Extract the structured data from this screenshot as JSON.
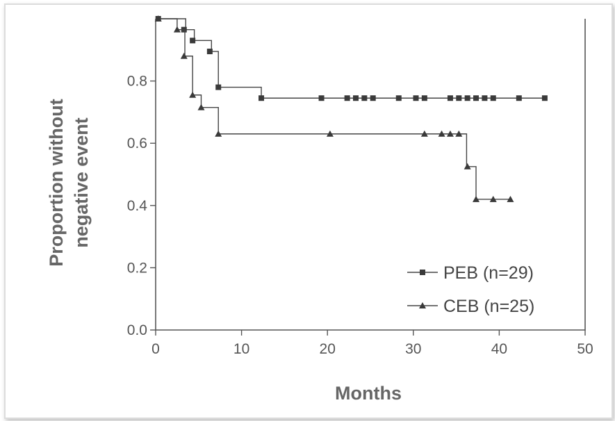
{
  "chart_data": {
    "type": "line",
    "xlabel": "Months",
    "ylabel_lines": [
      "Proportion without",
      "negative event"
    ],
    "xlim": [
      0,
      50
    ],
    "ylim": [
      0,
      1.0
    ],
    "x_ticks": [
      0,
      10,
      20,
      30,
      40,
      50
    ],
    "x_tick_labels": [
      "0",
      "10",
      "20",
      "30",
      "40",
      "50"
    ],
    "y_ticks": [
      0,
      0.2,
      0.4,
      0.6,
      0.8
    ],
    "y_tick_labels": [
      "0.0",
      "0.2",
      "0.4",
      "0.6",
      "0.8"
    ],
    "grid": false,
    "legend_position": "bottom-right",
    "series": [
      {
        "name": "PEB (n=29)",
        "marker": "square",
        "step_times": [
          0,
          3.5,
          4.5,
          6.5,
          7.3,
          12.3,
          45.2
        ],
        "step_values": [
          1.0,
          0.965,
          0.93,
          0.895,
          0.78,
          0.745,
          0.745
        ],
        "marker_points": [
          [
            0.3,
            1.0
          ],
          [
            3.3,
            0.965
          ],
          [
            4.3,
            0.93
          ],
          [
            6.3,
            0.895
          ],
          [
            7.3,
            0.78
          ],
          [
            12.3,
            0.745
          ],
          [
            19.3,
            0.745
          ],
          [
            22.3,
            0.745
          ],
          [
            23.3,
            0.745
          ],
          [
            24.3,
            0.745
          ],
          [
            25.3,
            0.745
          ],
          [
            28.3,
            0.745
          ],
          [
            30.3,
            0.745
          ],
          [
            31.3,
            0.745
          ],
          [
            34.3,
            0.745
          ],
          [
            35.3,
            0.745
          ],
          [
            36.3,
            0.745
          ],
          [
            37.3,
            0.745
          ],
          [
            38.3,
            0.745
          ],
          [
            39.3,
            0.745
          ],
          [
            42.3,
            0.745
          ],
          [
            45.3,
            0.745
          ]
        ]
      },
      {
        "name": "CEB (n=25)",
        "marker": "triangle",
        "step_times": [
          0,
          2.5,
          3.4,
          4.3,
          5.3,
          7.3,
          36.2,
          37.3,
          41.2
        ],
        "step_values": [
          1.0,
          0.965,
          0.88,
          0.755,
          0.715,
          0.63,
          0.525,
          0.42,
          0.42
        ],
        "marker_points": [
          [
            0.3,
            1.0
          ],
          [
            2.5,
            0.965
          ],
          [
            3.3,
            0.88
          ],
          [
            4.3,
            0.755
          ],
          [
            5.3,
            0.715
          ],
          [
            7.3,
            0.63
          ],
          [
            20.3,
            0.63
          ],
          [
            31.3,
            0.63
          ],
          [
            33.3,
            0.63
          ],
          [
            34.3,
            0.63
          ],
          [
            35.3,
            0.63
          ],
          [
            36.3,
            0.525
          ],
          [
            37.3,
            0.42
          ],
          [
            39.3,
            0.42
          ],
          [
            41.3,
            0.42
          ]
        ]
      }
    ]
  }
}
